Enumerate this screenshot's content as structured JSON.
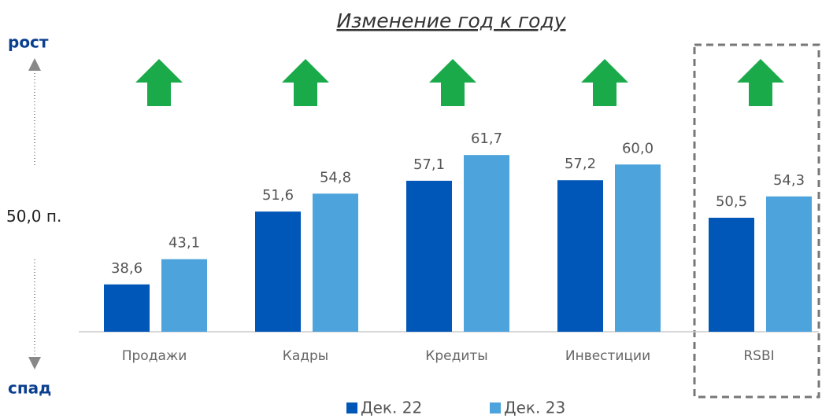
{
  "chart_data": {
    "type": "bar",
    "title": "Изменение год к году",
    "top_label": "рост",
    "bottom_label": "спад",
    "midline": {
      "value": 50,
      "label": "50,0 п."
    },
    "categories": [
      "Продажи",
      "Кадры",
      "Кредиты",
      "Инвестиции",
      "RSBI"
    ],
    "series": [
      {
        "name": "Дек. 22",
        "color": "#0057b8",
        "values": [
          38.6,
          51.6,
          57.1,
          57.2,
          50.5
        ],
        "value_labels": [
          "38,6",
          "51,6",
          "57,1",
          "57,2",
          "50,5"
        ]
      },
      {
        "name": "Дек. 23",
        "color": "#4da3dc",
        "values": [
          43.1,
          54.8,
          61.7,
          60.0,
          54.3
        ],
        "value_labels": [
          "43,1",
          "54,8",
          "61,7",
          "60,0",
          "54,3"
        ]
      }
    ],
    "ylim": [
      30.15,
      70
    ]
  }
}
